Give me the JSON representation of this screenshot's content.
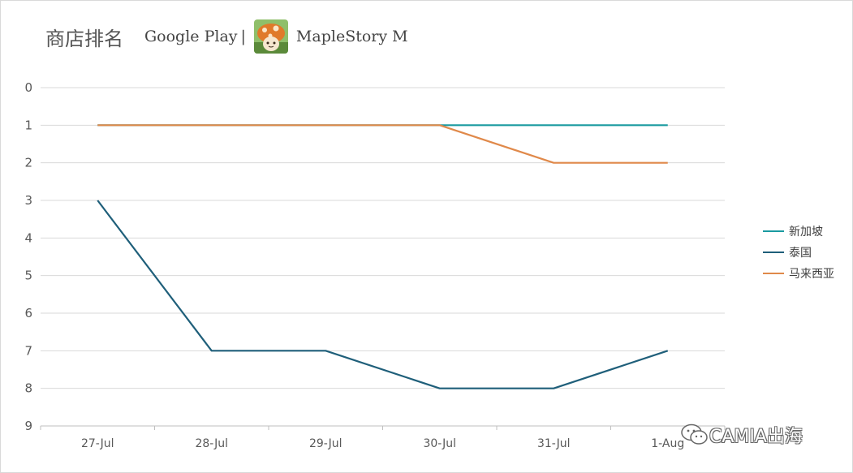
{
  "header": {
    "title": "商店排名",
    "store": "Google Play",
    "separator": "|",
    "app_name": "MapleStory M"
  },
  "watermark": {
    "text": "CAMIA出海"
  },
  "chart_data": {
    "type": "line",
    "categories": [
      "27-Jul",
      "28-Jul",
      "29-Jul",
      "30-Jul",
      "31-Jul",
      "1-Aug"
    ],
    "y_ticks": [
      "0",
      "1",
      "2",
      "3",
      "4",
      "5",
      "6",
      "7",
      "8",
      "9"
    ],
    "ylim": [
      0,
      9
    ],
    "y_reversed": true,
    "grid": true,
    "legend_position": "right",
    "series": [
      {
        "name": "新加坡",
        "color": "#1a9aa0",
        "values": [
          1,
          1,
          1,
          1,
          1,
          1
        ]
      },
      {
        "name": "泰国",
        "color": "#1f5f7a",
        "values": [
          3,
          7,
          7,
          8,
          8,
          7
        ]
      },
      {
        "name": "马来西亚",
        "color": "#e0894a",
        "values": [
          1,
          1,
          1,
          1,
          2,
          2
        ]
      }
    ]
  }
}
